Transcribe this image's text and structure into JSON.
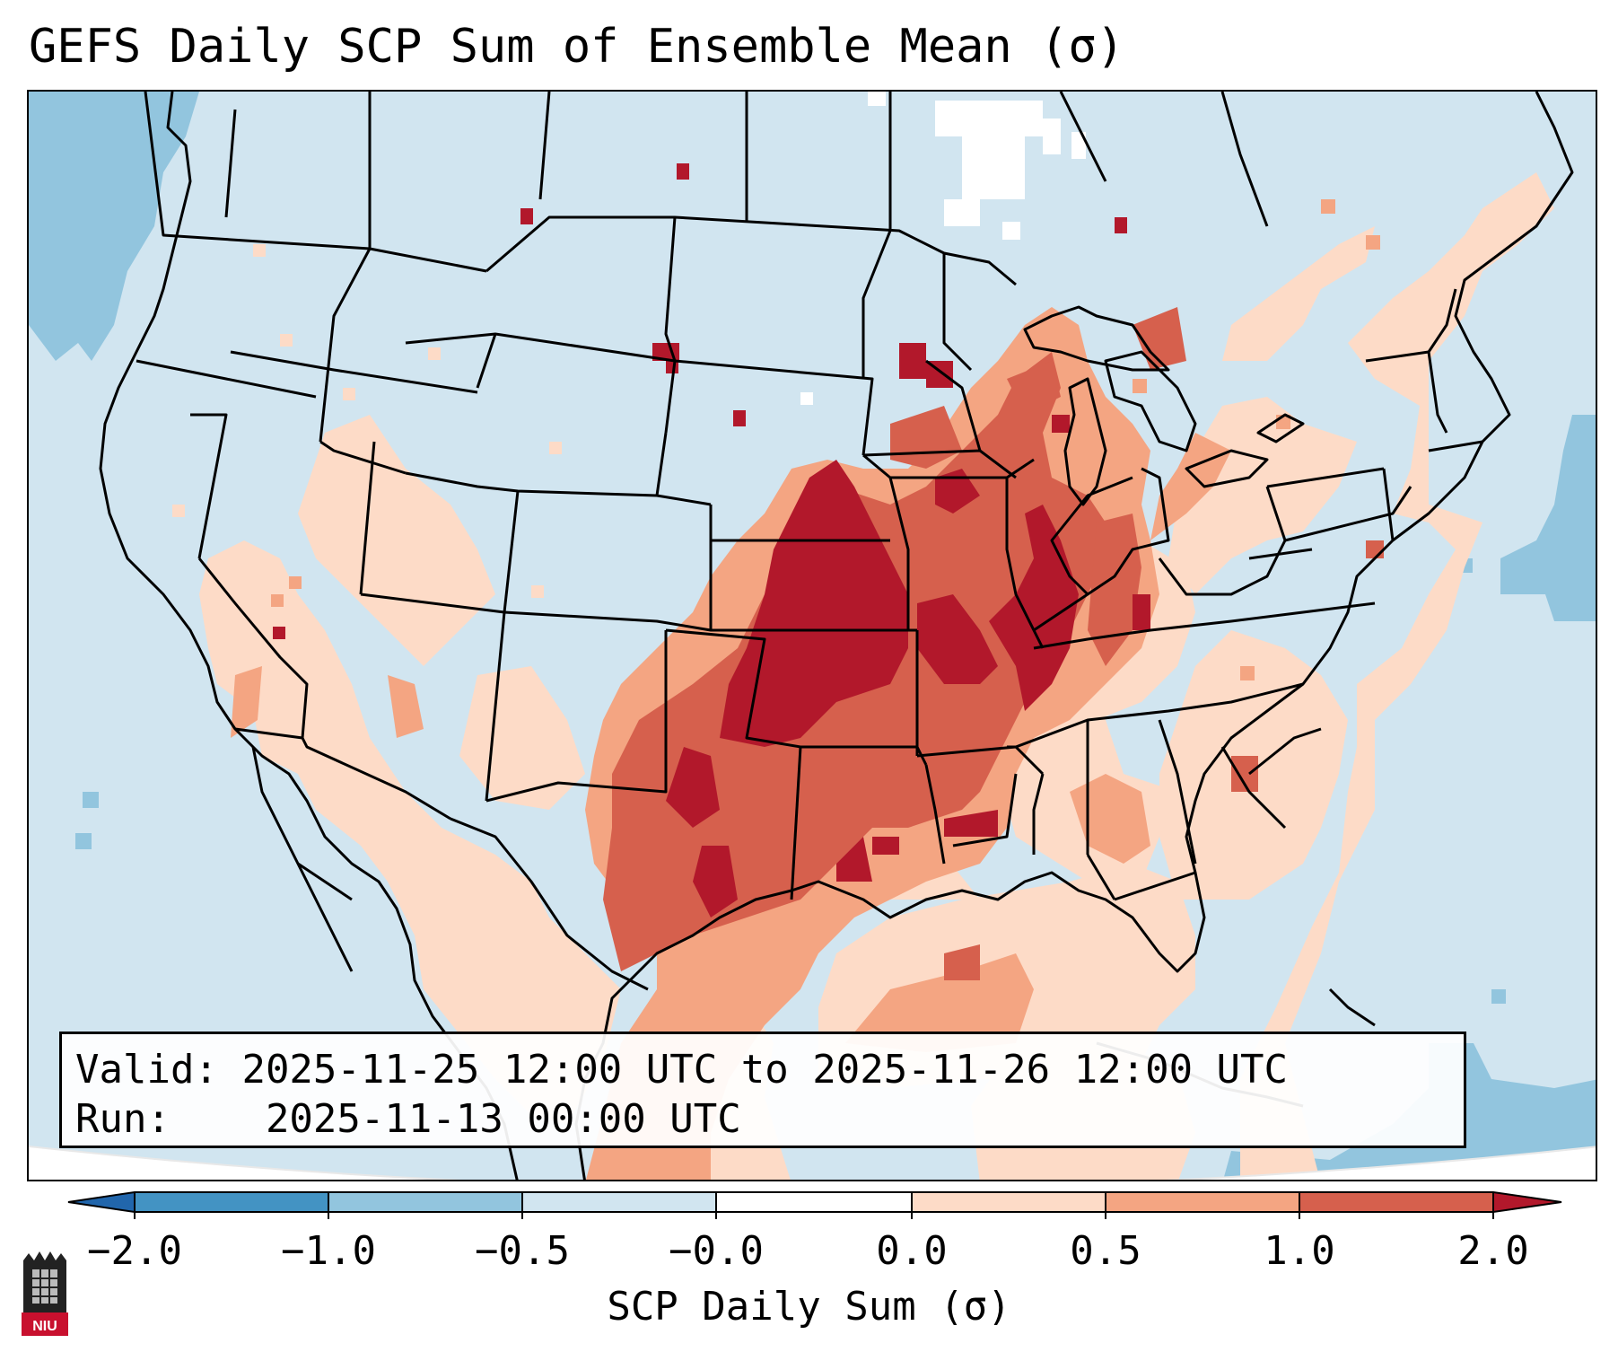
{
  "title": "GEFS Daily SCP Sum of Ensemble Mean (σ)",
  "info": {
    "valid_label": "Valid:",
    "valid_value": "2025-11-25 12:00 UTC to 2025-11-26 12:00 UTC",
    "run_label": "Run:",
    "run_value": "2025-11-13 00:00 UTC"
  },
  "colorbar": {
    "label": "SCP Daily Sum (σ)",
    "tick_labels": [
      "−2.0",
      "−1.0",
      "−0.5",
      "−0.0",
      "0.0",
      "0.5",
      "1.0",
      "2.0"
    ],
    "bins": [
      {
        "range": "<−2.0",
        "color": "#2166ac"
      },
      {
        "range": "−2.0 to −1.0",
        "color": "#4393c3"
      },
      {
        "range": "−1.0 to −0.5",
        "color": "#92c5de"
      },
      {
        "range": "−0.5 to −0.0",
        "color": "#d1e5f0"
      },
      {
        "range": "−0.0 to 0.0",
        "color": "#ffffff"
      },
      {
        "range": "0.0 to 0.5",
        "color": "#fddbc7"
      },
      {
        "range": "0.5 to 1.0",
        "color": "#f4a582"
      },
      {
        "range": "1.0 to 2.0",
        "color": "#d6604d"
      },
      {
        "range": ">2.0",
        "color": "#b2182b"
      }
    ]
  },
  "map": {
    "region": "Contiguous United States",
    "max_anomaly_region": "Southern Plains, Mid-Mississippi and Ohio Valleys"
  },
  "logo": {
    "text": "NIU"
  }
}
